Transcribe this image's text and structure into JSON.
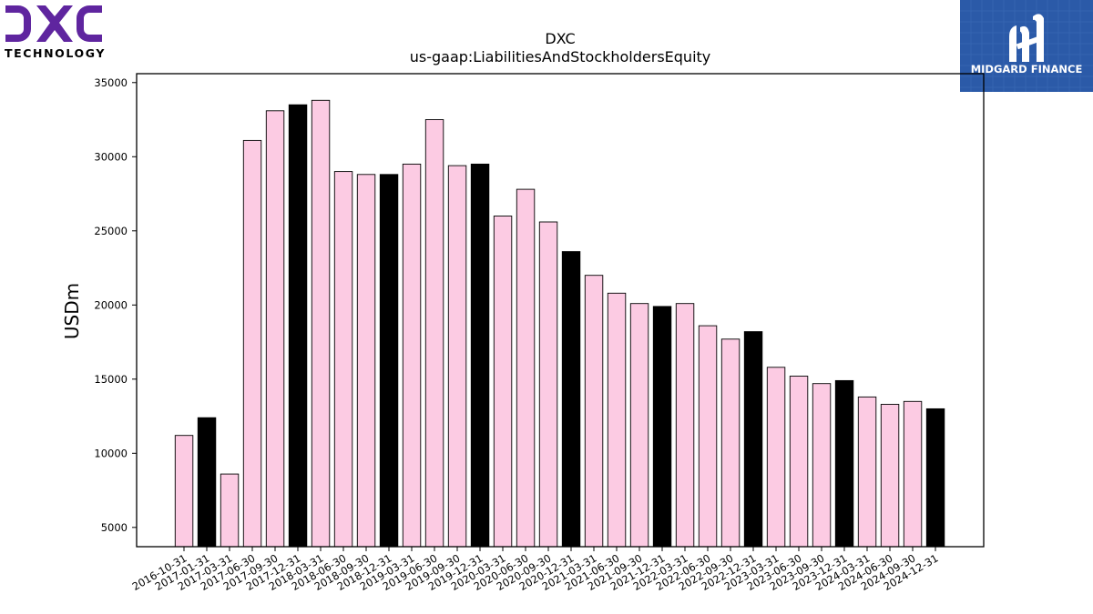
{
  "logos": {
    "left_brand": "DXC",
    "left_sub": "TECHNOLOGY",
    "right_brand": "MIDGARD FINANCE"
  },
  "colors": {
    "pink_bar": "#fccbe3",
    "black_bar": "#000000",
    "dxc_purple": "#5f259f",
    "midgard_blue": "#2b5aa8"
  },
  "chart_data": {
    "type": "bar",
    "title": "DXC",
    "subtitle": "us-gaap:LiabilitiesAndStockholdersEquity",
    "xlabel": "",
    "ylabel": "USDm",
    "ylim": [
      3700,
      35600
    ],
    "yticks": [
      5000,
      10000,
      15000,
      20000,
      25000,
      30000,
      35000
    ],
    "grid": false,
    "categories": [
      "2016-10-31",
      "2017-01-31",
      "2017-03-31",
      "2017-06-30",
      "2017-09-30",
      "2017-12-31",
      "2018-03-31",
      "2018-06-30",
      "2018-09-30",
      "2018-12-31",
      "2019-03-31",
      "2019-06-30",
      "2019-09-30",
      "2019-12-31",
      "2020-03-31",
      "2020-06-30",
      "2020-09-30",
      "2020-12-31",
      "2021-03-31",
      "2021-06-30",
      "2021-09-30",
      "2021-12-31",
      "2022-03-31",
      "2022-06-30",
      "2022-09-30",
      "2022-12-31",
      "2023-03-31",
      "2023-06-30",
      "2023-09-30",
      "2023-12-31",
      "2024-03-31",
      "2024-06-30",
      "2024-09-30",
      "2024-12-31"
    ],
    "values": [
      11200,
      12400,
      8600,
      31100,
      33100,
      33500,
      33800,
      29000,
      28800,
      28800,
      29500,
      32500,
      29400,
      29500,
      26000,
      27800,
      25600,
      23600,
      22000,
      20800,
      20100,
      19900,
      20100,
      18600,
      17700,
      18200,
      15800,
      15200,
      14700,
      14900,
      13800,
      13300,
      13500,
      13000
    ],
    "highlight": [
      false,
      true,
      false,
      false,
      false,
      true,
      false,
      false,
      false,
      true,
      false,
      false,
      false,
      true,
      false,
      false,
      false,
      true,
      false,
      false,
      false,
      true,
      false,
      false,
      false,
      true,
      false,
      false,
      false,
      true,
      false,
      false,
      false,
      true
    ]
  }
}
